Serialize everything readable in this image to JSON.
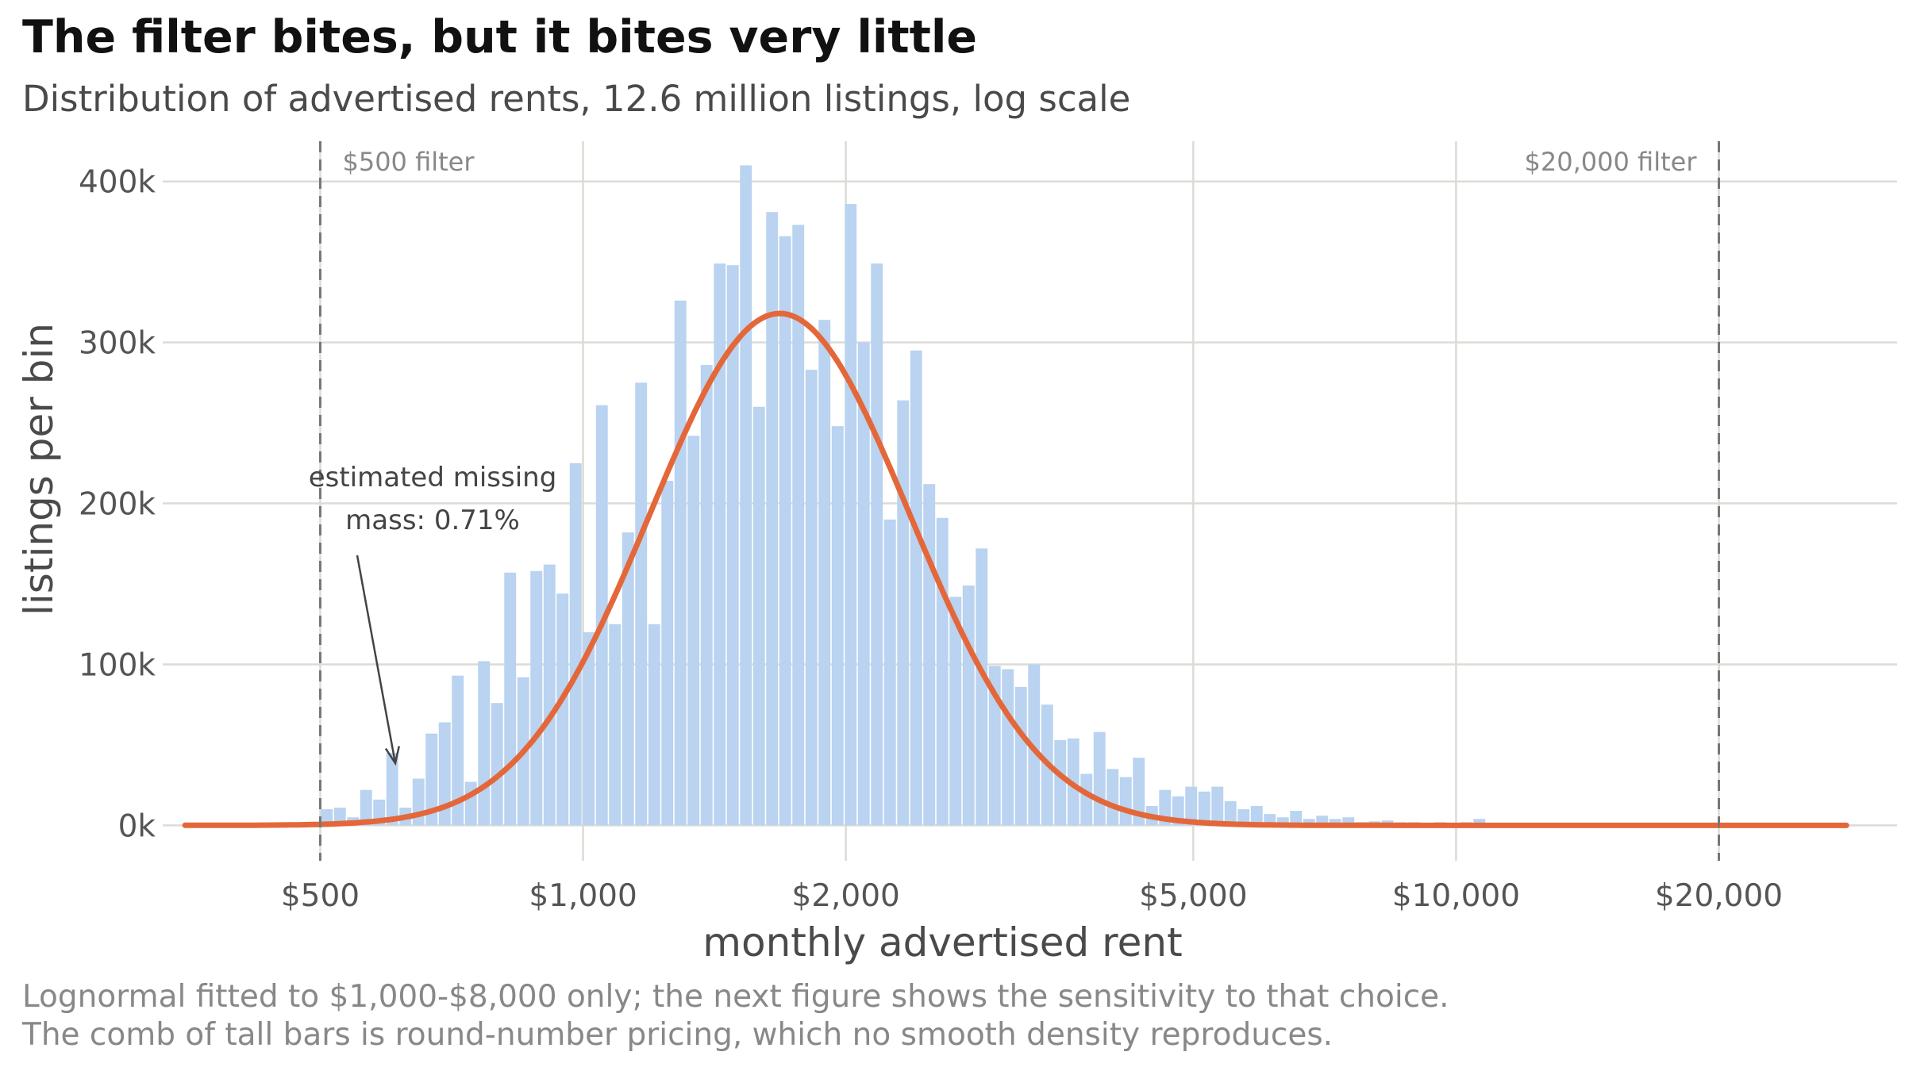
{
  "title": "The filter bites, but it bites very little",
  "subtitle": "Distribution of advertised rents, 12.6 million listings, log scale",
  "caption": [
    "Lognormal fitted to $1,000-$8,000 only; the next figure shows the sensitivity to that choice.",
    "The comb of tall bars is round-number pricing, which no smooth density reproduces."
  ],
  "chart_data": {
    "type": "bar",
    "xscale": "log",
    "xlabel": "monthly advertised rent",
    "ylabel": "listings per bin",
    "xlim": [
      330,
      32000
    ],
    "ylim": [
      -22000,
      425000
    ],
    "xticks": [
      {
        "value": 500,
        "label": "$500"
      },
      {
        "value": 1000,
        "label": "$1,000"
      },
      {
        "value": 2000,
        "label": "$2,000"
      },
      {
        "value": 5000,
        "label": "$5,000"
      },
      {
        "value": 10000,
        "label": "$10,000"
      },
      {
        "value": 20000,
        "label": "$20,000"
      }
    ],
    "yticks": [
      {
        "value": 0,
        "label": "0k"
      },
      {
        "value": 100000,
        "label": "100k"
      },
      {
        "value": 200000,
        "label": "200k"
      },
      {
        "value": 300000,
        "label": "300k"
      },
      {
        "value": 400000,
        "label": "400k"
      }
    ],
    "grid": true,
    "histogram": {
      "bin_edges_range": [
        500,
        12000
      ],
      "counts": [
        10000,
        11000,
        5000,
        22000,
        16000,
        45000,
        11000,
        29000,
        57000,
        64000,
        93000,
        27000,
        102000,
        76000,
        157000,
        92000,
        158000,
        162000,
        144000,
        225000,
        120000,
        261000,
        125000,
        182000,
        275000,
        125000,
        214000,
        326000,
        242000,
        286000,
        349000,
        348000,
        410000,
        260000,
        381000,
        366000,
        373000,
        283000,
        314000,
        248000,
        386000,
        300000,
        349000,
        190000,
        264000,
        295000,
        212000,
        191000,
        142000,
        149000,
        172000,
        99000,
        97000,
        86000,
        100000,
        75000,
        53000,
        54000,
        32000,
        58000,
        35000,
        30000,
        42000,
        12000,
        22000,
        18000,
        24000,
        21000,
        24000,
        15000,
        10000,
        12000,
        7000,
        5000,
        9000,
        4000,
        6000,
        4000,
        5000,
        2000,
        2500,
        3000,
        2000,
        2000,
        1500,
        2000,
        1200,
        2000,
        4000,
        1000,
        800,
        700
      ],
      "color": "#b9d3f0"
    },
    "fit_curve": {
      "name": "Lognormal",
      "peak_x": 1680,
      "peak_y": 318000,
      "sigma_log": 0.3435,
      "x_range": [
        350,
        28000
      ],
      "color": "#e4673a",
      "shaded_below": 500
    },
    "annotations": [
      {
        "x": 500,
        "label": "$500 filter",
        "style": "dashed-vline",
        "align": "left"
      },
      {
        "x": 20000,
        "label": "$20,000 filter",
        "style": "dashed-vline",
        "align": "right"
      },
      {
        "lines": [
          "estimated missing",
          "mass: 0.71%"
        ],
        "arrow_from": [
          430,
          170000
        ],
        "arrow_to": [
          480,
          42000
        ]
      }
    ]
  }
}
